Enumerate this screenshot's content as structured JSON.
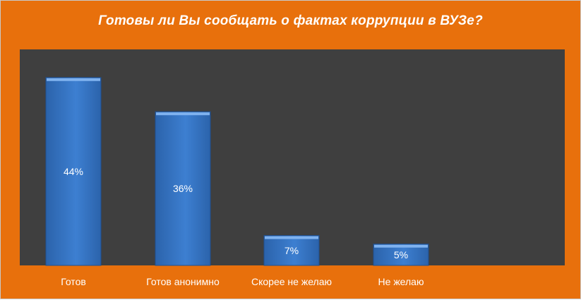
{
  "chart_data": {
    "type": "bar",
    "title": "Готовы ли Вы сообщать о фактах коррупции в ВУЗе?",
    "categories": [
      "Готов",
      "Готов анонимно",
      "Скорее не желаю",
      "Не желаю"
    ],
    "values": [
      44,
      36,
      7,
      5
    ],
    "data_labels": [
      "44%",
      "36%",
      "7%",
      "5%"
    ],
    "ylim": [
      0,
      50
    ],
    "grid": false,
    "legend": "none",
    "colors": {
      "background": "#e8700c",
      "plot_area": "#3f3f3f",
      "bar": "#3d7fd1",
      "bar_dark": "#2b63ab",
      "bar_top": "#7fb2ef",
      "text": "#ffffff"
    }
  }
}
